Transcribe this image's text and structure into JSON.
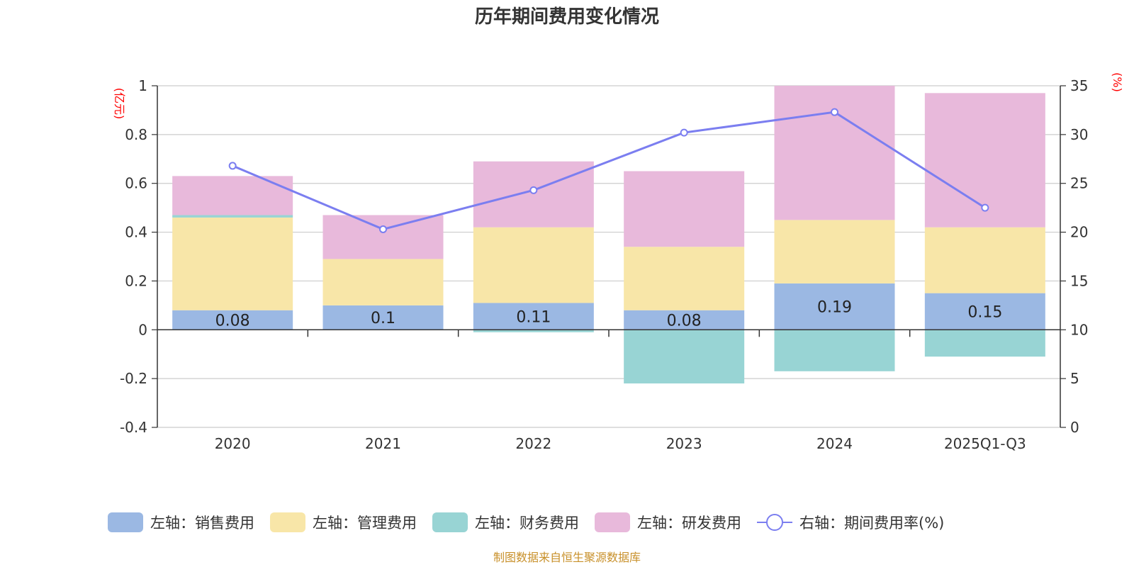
{
  "chart_data": {
    "type": "bar",
    "title": "历年期间费用变化情况",
    "left_unit": "(亿元)",
    "right_unit": "(%)",
    "categories": [
      "2020",
      "2021",
      "2022",
      "2023",
      "2024",
      "2025Q1-Q3"
    ],
    "left_axis": {
      "min": -0.4,
      "max": 1,
      "ticks": [
        "1",
        "0.8",
        "0.6",
        "0.4",
        "0.2",
        "0",
        "-0.2",
        "-0.4"
      ]
    },
    "right_axis": {
      "min": 0,
      "max": 35,
      "ticks": [
        "35",
        "30",
        "25",
        "20",
        "15",
        "10",
        "5",
        "0"
      ]
    },
    "series": [
      {
        "name": "左轴：销售费用",
        "color": "#9bb8e3",
        "values": [
          0.08,
          0.1,
          0.11,
          0.08,
          0.19,
          0.15
        ],
        "labels": [
          "0.08",
          "0.1",
          "0.11",
          "0.08",
          "0.19",
          "0.15"
        ]
      },
      {
        "name": "左轴：管理费用",
        "color": "#f8e6a8",
        "values": [
          0.38,
          0.19,
          0.31,
          0.26,
          0.26,
          0.27
        ]
      },
      {
        "name": "左轴：财务费用",
        "color": "#98d4d4",
        "values": [
          0.01,
          0.0,
          -0.01,
          -0.22,
          -0.17,
          -0.11
        ]
      },
      {
        "name": "左轴：研发费用",
        "color": "#e8b9db",
        "values": [
          0.16,
          0.18,
          0.27,
          0.31,
          0.55,
          0.55
        ]
      }
    ],
    "line": {
      "name": "右轴：期间费用率(%)",
      "color": "#7b7ef0",
      "values": [
        26.8,
        20.3,
        24.3,
        30.2,
        32.3,
        22.5
      ]
    }
  },
  "source": "制图数据来自恒生聚源数据库"
}
